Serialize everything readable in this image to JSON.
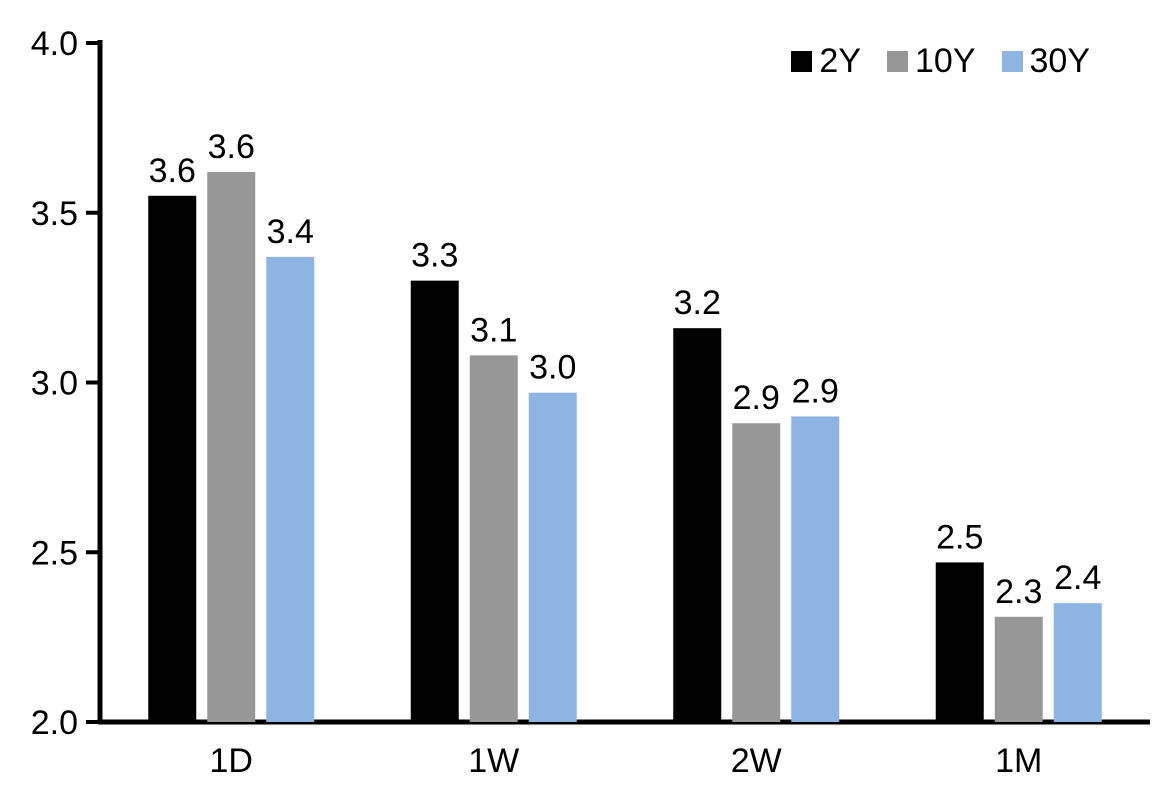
{
  "chart_data": {
    "type": "bar",
    "title": "",
    "xlabel": "",
    "ylabel": "",
    "categories": [
      "1D",
      "1W",
      "2W",
      "1M"
    ],
    "series": [
      {
        "name": "2Y",
        "color": "#000000",
        "values": [
          3.55,
          3.3,
          3.16,
          2.47
        ],
        "labels": [
          "3.6",
          "3.3",
          "3.2",
          "2.5"
        ]
      },
      {
        "name": "10Y",
        "color": "#979797",
        "values": [
          3.62,
          3.08,
          2.88,
          2.31
        ],
        "labels": [
          "3.6",
          "3.1",
          "2.9",
          "2.3"
        ]
      },
      {
        "name": "30Y",
        "color": "#8EB4E3",
        "values": [
          3.37,
          2.97,
          2.9,
          2.35
        ],
        "labels": [
          "3.4",
          "3.0",
          "2.9",
          "2.4"
        ]
      }
    ],
    "ylim": [
      2.0,
      4.0
    ],
    "ytick_values": [
      2.0,
      2.5,
      3.0,
      3.5,
      4.0
    ],
    "ytick_labels": [
      "2.0",
      "2.5",
      "3.0",
      "3.5",
      "4.0"
    ],
    "grid": false,
    "legend_position": "top-right",
    "axis_color": "#000000",
    "label_color": "#000000"
  }
}
